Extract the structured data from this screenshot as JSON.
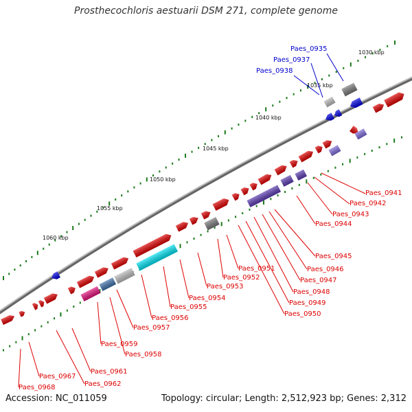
{
  "title": "Prosthecochloris aestuarii DSM 271, complete genome",
  "footer": {
    "accession": "Accession: NC_011059",
    "summary": "Topology: circular; Length: 2,512,923 bp; Genes: 2,312"
  },
  "colors": {
    "forward": "#e00000",
    "reverse_strand_gene": "#0000e0",
    "hypothetical": "#777777",
    "cyan": "#00e0f0",
    "magenta": "#e0107a",
    "steelblue": "#3d6fa8",
    "silver": "#bbbbbb",
    "purple": "#5a3ab0",
    "lavender": "#7b6ad8",
    "backbone": "#888888",
    "tick_green": "#1a7a1a",
    "label_red": "#dd0000",
    "label_blue": "#0000cc"
  },
  "ticks": [
    {
      "label": "1030 kbp"
    },
    {
      "label": "1035 kbp"
    },
    {
      "label": "1040 kbp"
    },
    {
      "label": "1045 kbp"
    },
    {
      "label": "1050 kbp"
    },
    {
      "label": "1055 kbp"
    },
    {
      "label": "1060 kbp"
    }
  ],
  "gene_labels_top": [
    {
      "name": "Paes_0935"
    },
    {
      "name": "Paes_0937"
    },
    {
      "name": "Paes_0938"
    }
  ],
  "gene_labels_bottom": [
    {
      "name": "Paes_0941"
    },
    {
      "name": "Paes_0942"
    },
    {
      "name": "Paes_0943"
    },
    {
      "name": "Paes_0944"
    },
    {
      "name": "Paes_0945"
    },
    {
      "name": "Paes_0946"
    },
    {
      "name": "Paes_0947"
    },
    {
      "name": "Paes_0948"
    },
    {
      "name": "Paes_0949"
    },
    {
      "name": "Paes_0950"
    },
    {
      "name": "Paes_0951"
    },
    {
      "name": "Paes_0952"
    },
    {
      "name": "Paes_0953"
    },
    {
      "name": "Paes_0954"
    },
    {
      "name": "Paes_0955"
    },
    {
      "name": "Paes_0956"
    },
    {
      "name": "Paes_0957"
    },
    {
      "name": "Paes_0958"
    },
    {
      "name": "Paes_0959"
    },
    {
      "name": "Paes_0961"
    },
    {
      "name": "Paes_0962"
    },
    {
      "name": "Paes_0967"
    },
    {
      "name": "Paes_0968"
    }
  ]
}
